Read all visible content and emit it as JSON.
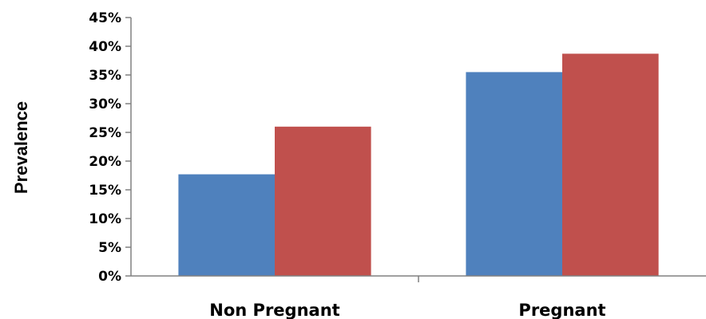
{
  "chart_data": {
    "type": "bar",
    "categories": [
      "Non Pregnant",
      "Pregnant"
    ],
    "series": [
      {
        "values": [
          17.7,
          35.5
        ],
        "color": "#4F81BD"
      },
      {
        "values": [
          26.0,
          38.7
        ],
        "color": "#C0504D"
      }
    ],
    "title": "",
    "xlabel": "",
    "ylabel": "Prevalence",
    "ylim": [
      0,
      45
    ],
    "yticks": [
      "0%",
      "5%",
      "10%",
      "15%",
      "20%",
      "25%",
      "30%",
      "35%",
      "40%",
      "45%"
    ],
    "grid": false,
    "legend": "none"
  }
}
